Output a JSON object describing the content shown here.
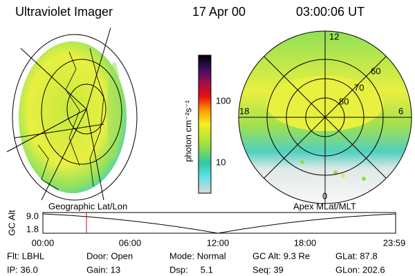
{
  "header": {
    "title": "Ultraviolet Imager",
    "date": "17 Apr 00",
    "time": "03:00:06 UT"
  },
  "left_panel": {
    "label": "Geographic Lat/Lon"
  },
  "right_panel": {
    "label": "Apex MLat/MLT",
    "grid_labels": [
      "12",
      "60",
      "70",
      "80",
      "18",
      "6",
      "0"
    ]
  },
  "colorbar": {
    "label": "photon cm⁻²s⁻¹",
    "ticks": [
      "100",
      "10"
    ]
  },
  "altitude_plot": {
    "axis_label": "GC Alt",
    "yticks": [
      "9.0",
      "1.8"
    ],
    "xticks": [
      "00:00",
      "06:00",
      "12:00",
      "18:00",
      "23:59"
    ]
  },
  "footer": {
    "rows": [
      [
        "Flt: LBHL",
        "Door: Open",
        "Mode: Normal",
        "GC Alt: 9.3 Re",
        "GLat: 87.8"
      ],
      [
        "IP: 36.0",
        "Gain: 13",
        "Dsp:     5.1",
        "Seq: 39",
        "GLon: 202.6"
      ]
    ]
  }
}
